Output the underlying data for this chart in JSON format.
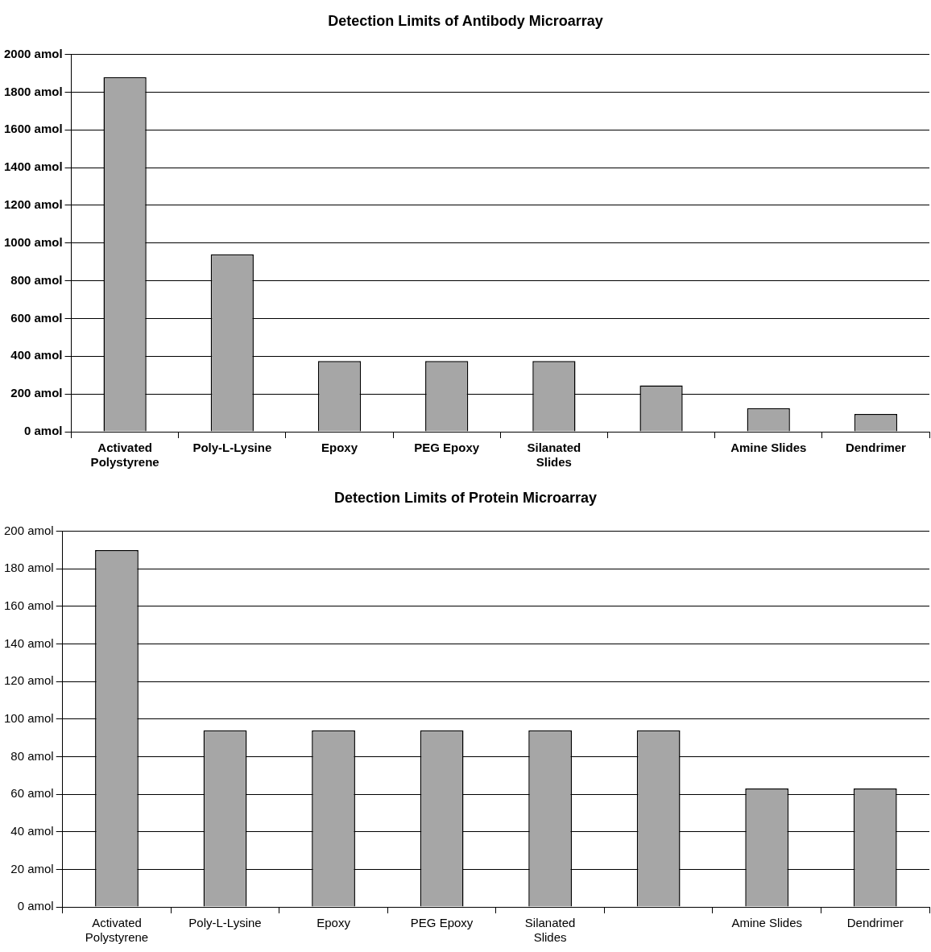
{
  "chart_data": [
    {
      "type": "bar",
      "title": "Detection Limits of Antibody Microarray",
      "categories": [
        "Activated Polystyrene",
        "Poly-L-Lysine",
        "Epoxy",
        "PEG Epoxy",
        "Silanated Slides",
        null,
        "Amine Slides",
        "Dendrimer"
      ],
      "values": [
        1880,
        940,
        375,
        375,
        375,
        245,
        125,
        94
      ],
      "color": "#a6a6a6",
      "ylim": [
        0,
        2000
      ],
      "yticks": [
        {
          "value": 0,
          "label": "0 amol"
        },
        {
          "value": 200,
          "label": "200 amol"
        },
        {
          "value": 400,
          "label": "400 amol"
        },
        {
          "value": 600,
          "label": "600 amol"
        },
        {
          "value": 800,
          "label": "800 amol"
        },
        {
          "value": 1000,
          "label": "1000 amol"
        },
        {
          "value": 1200,
          "label": "1200 amol"
        },
        {
          "value": 1400,
          "label": "1400 amol"
        },
        {
          "value": 1600,
          "label": "1600 amol"
        },
        {
          "value": 1800,
          "label": "1800 amol"
        },
        {
          "value": 2000,
          "label": "2000 amol"
        }
      ],
      "grid": "y",
      "legend": false
    },
    {
      "type": "bar",
      "title": "Detection Limits of Protein Microarray",
      "categories": [
        "Activated Polystyrene",
        "Poly-L-Lysine",
        "Epoxy",
        "PEG Epoxy",
        "Silanated Slides",
        null,
        "Amine Slides",
        "Dendrimer"
      ],
      "values": [
        190,
        94,
        94,
        94,
        94,
        94,
        63,
        63
      ],
      "color": "#a6a6a6",
      "ylim": [
        0,
        200
      ],
      "yticks": [
        {
          "value": 0,
          "label": "0 amol"
        },
        {
          "value": 20,
          "label": "20 amol"
        },
        {
          "value": 40,
          "label": "40 amol"
        },
        {
          "value": 60,
          "label": "60 amol"
        },
        {
          "value": 80,
          "label": "80 amol"
        },
        {
          "value": 100,
          "label": "100 amol"
        },
        {
          "value": 120,
          "label": "120 amol"
        },
        {
          "value": 140,
          "label": "140 amol"
        },
        {
          "value": 160,
          "label": "160 amol"
        },
        {
          "value": 180,
          "label": "180 amol"
        },
        {
          "value": 200,
          "label": "200 amol"
        }
      ],
      "grid": "y",
      "legend": false
    }
  ]
}
